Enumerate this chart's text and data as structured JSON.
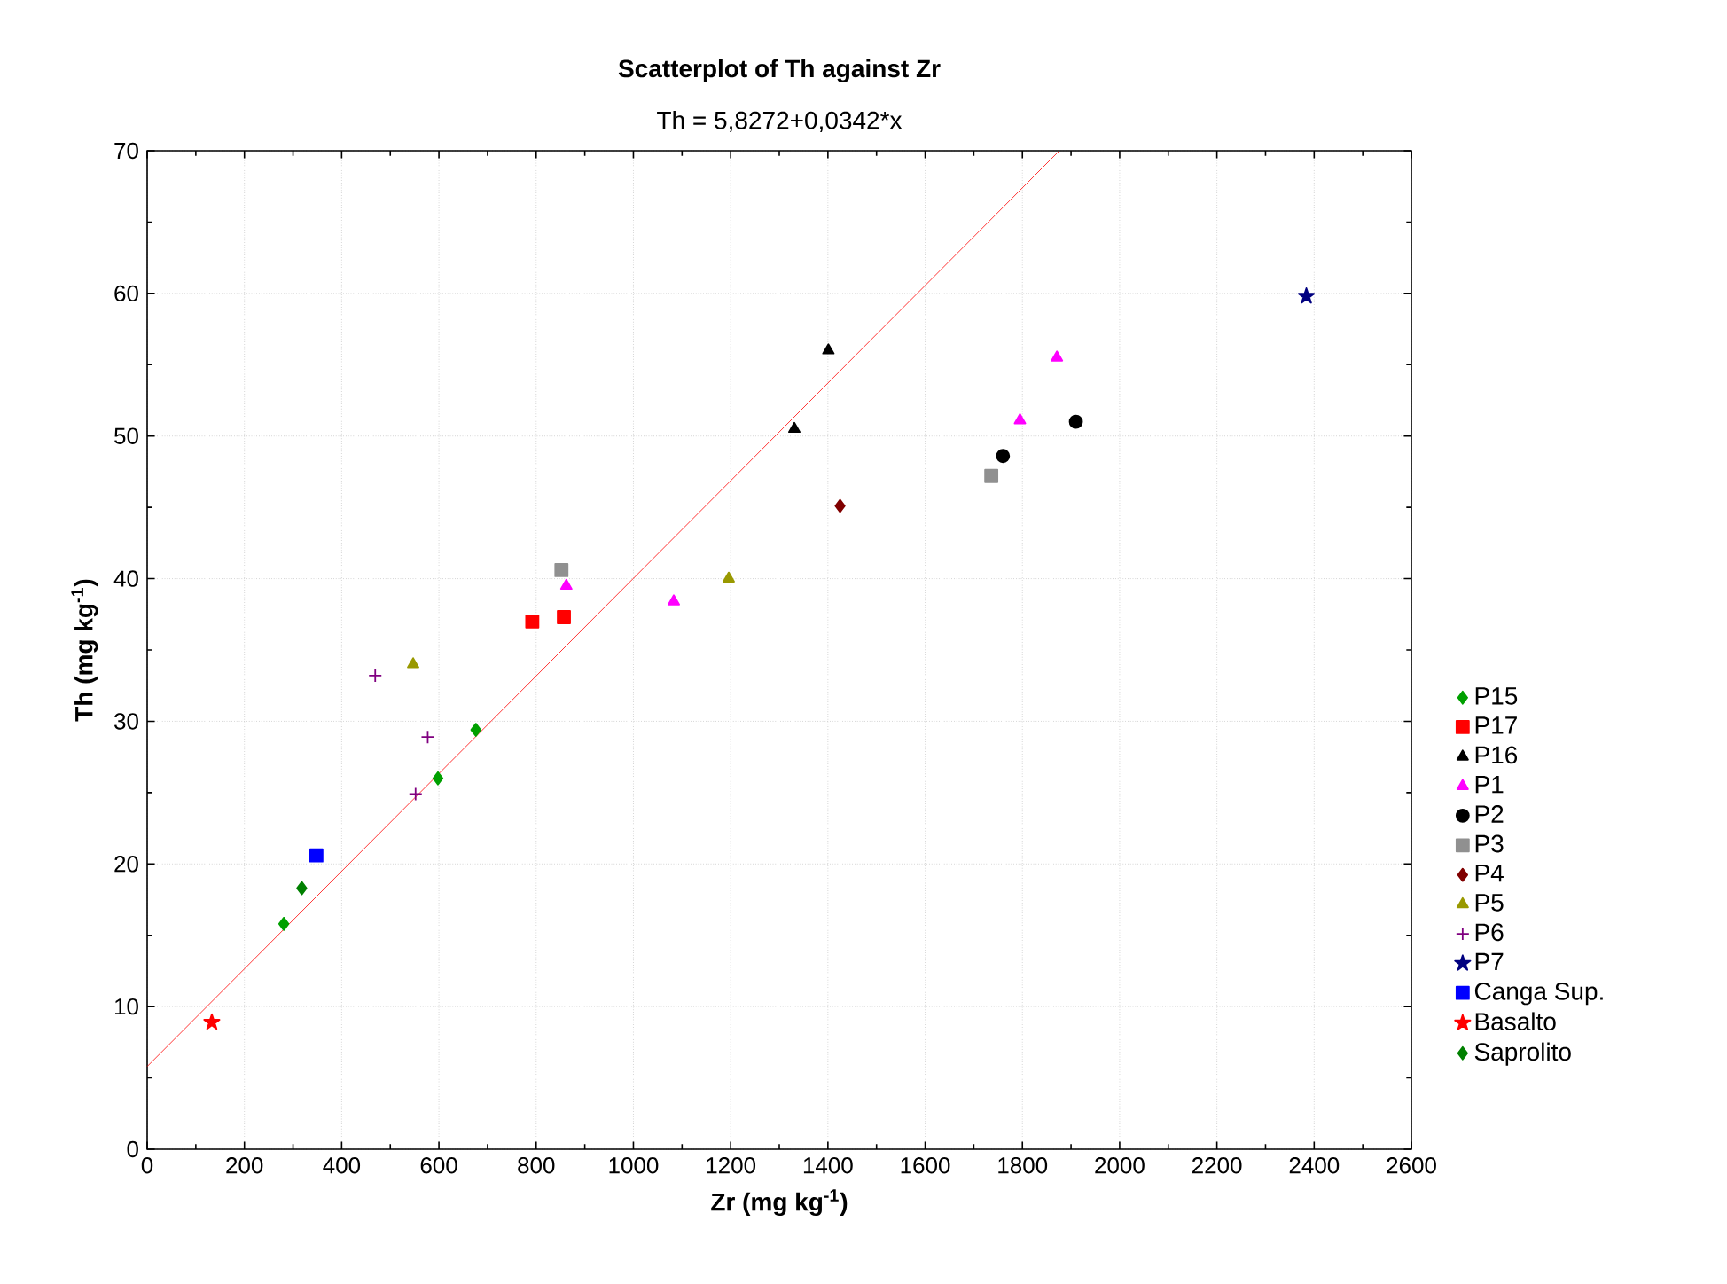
{
  "chart_data": {
    "type": "scatter",
    "title": "Scatterplot of Th against Zr",
    "subtitle": "Th = 5,8272+0,0342*x",
    "xlabel": "Zr (mg kg$^{-1}$)",
    "ylabel": "Th (mg kg$^{-1}$)",
    "xlim": [
      0,
      2600
    ],
    "xticks": [
      0,
      200,
      400,
      600,
      800,
      1000,
      1200,
      1400,
      1600,
      1800,
      2000,
      2200,
      2400,
      2600
    ],
    "ylim": [
      0,
      70
    ],
    "yticks": [
      0,
      10,
      20,
      30,
      40,
      50,
      60,
      70
    ],
    "grid": true,
    "legend": "right",
    "series": [
      {
        "type": "line",
        "x": [
          0,
          1876
        ],
        "values": [
          5.8,
          70
        ],
        "color": "#ff0000",
        "marker": "none",
        "line_style": "solid"
      },
      {
        "name": "P15",
        "x": [
          281,
          598,
          676
        ],
        "values": [
          15.8,
          26.0,
          29.4
        ],
        "color": "#00a000",
        "marker": "diamond"
      },
      {
        "name": "P17",
        "x": [
          792,
          857
        ],
        "values": [
          37.0,
          37.3
        ],
        "color": "#ff0000",
        "marker": "square"
      },
      {
        "name": "P16",
        "x": [
          1331,
          1401
        ],
        "values": [
          50.5,
          56.0
        ],
        "color": "#000000",
        "marker": "triangle"
      },
      {
        "name": "P1",
        "x": [
          862,
          1083,
          1795,
          1871
        ],
        "values": [
          39.5,
          38.4,
          51.1,
          55.5
        ],
        "color": "#ff00ff",
        "marker": "triangle"
      },
      {
        "name": "P2",
        "x": [
          1760,
          1910
        ],
        "values": [
          48.6,
          51.0
        ],
        "color": "#000000",
        "marker": "circle"
      },
      {
        "name": "P3",
        "x": [
          852,
          1736
        ],
        "values": [
          40.6,
          47.2
        ],
        "color": "#909090",
        "marker": "square"
      },
      {
        "name": "P4",
        "x": [
          1425
        ],
        "values": [
          45.1
        ],
        "color": "#800000",
        "marker": "diamond"
      },
      {
        "name": "P5",
        "x": [
          547,
          1196
        ],
        "values": [
          34.0,
          40.0
        ],
        "color": "#999900",
        "marker": "triangle"
      },
      {
        "name": "P6",
        "x": [
          469,
          552,
          577
        ],
        "values": [
          33.2,
          24.9,
          28.9
        ],
        "color": "#800080",
        "marker": "cross"
      },
      {
        "name": "P7",
        "x": [
          2384
        ],
        "values": [
          59.8
        ],
        "color": "#000080",
        "marker": "star"
      },
      {
        "name": "Canga Sup.",
        "x": [
          348
        ],
        "values": [
          20.6
        ],
        "color": "#0000ff",
        "marker": "square"
      },
      {
        "name": "Basalto",
        "x": [
          133
        ],
        "values": [
          8.9
        ],
        "color": "#ff0000",
        "marker": "star"
      },
      {
        "name": "Saprolito",
        "x": [
          318
        ],
        "values": [
          18.3
        ],
        "color": "#008000",
        "marker": "diamond"
      }
    ]
  }
}
